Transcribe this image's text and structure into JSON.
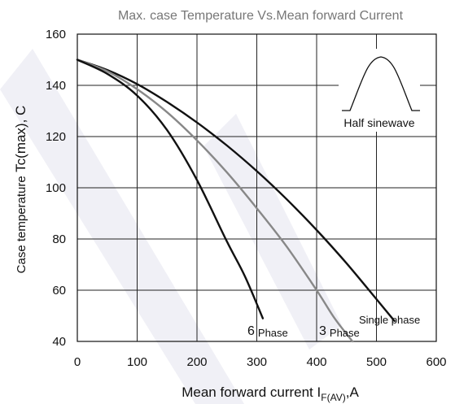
{
  "chart_data": {
    "type": "line",
    "title": "Max. case Temperature Vs.Mean forward Current",
    "xlabel": "Mean forward current",
    "xlabel_symbol": "I",
    "xlabel_subscript": "F(AV)",
    "xlabel_unit": ",A",
    "ylabel_text": "Case temperature",
    "ylabel_symbol": "Tc(max), C",
    "xlim": [
      0,
      600
    ],
    "ylim": [
      40,
      160
    ],
    "xticks": [
      "0",
      "100",
      "200",
      "300",
      "400",
      "500",
      "600"
    ],
    "yticks": [
      "40",
      "60",
      "80",
      "100",
      "120",
      "140",
      "160"
    ],
    "grid": true,
    "inset_label": "Half sinewave",
    "series": [
      {
        "name": "Single phase",
        "label_main": "Single phase",
        "label_sub": "",
        "color": "#111111",
        "x": [
          0,
          50,
          100,
          150,
          200,
          250,
          300,
          350,
          400,
          450,
          500,
          530
        ],
        "y": [
          150,
          146,
          140.5,
          133.5,
          125.5,
          116.5,
          106.5,
          95.5,
          83.5,
          70.5,
          56.5,
          48
        ]
      },
      {
        "name": "3 Phase",
        "label_main": "3",
        "label_sub": "Phase",
        "color": "#888888",
        "x": [
          0,
          50,
          100,
          150,
          200,
          250,
          300,
          350,
          400,
          430,
          460
        ],
        "y": [
          150,
          145.5,
          138.5,
          129.5,
          118.5,
          106,
          92,
          77,
          60,
          49,
          39
        ]
      },
      {
        "name": "6 Phase",
        "label_main": "6",
        "label_sub": "Phase",
        "color": "#111111",
        "x": [
          0,
          50,
          100,
          150,
          200,
          250,
          280,
          310
        ],
        "y": [
          150,
          144.5,
          136,
          122.5,
          103,
          79,
          65.5,
          49
        ]
      }
    ]
  }
}
